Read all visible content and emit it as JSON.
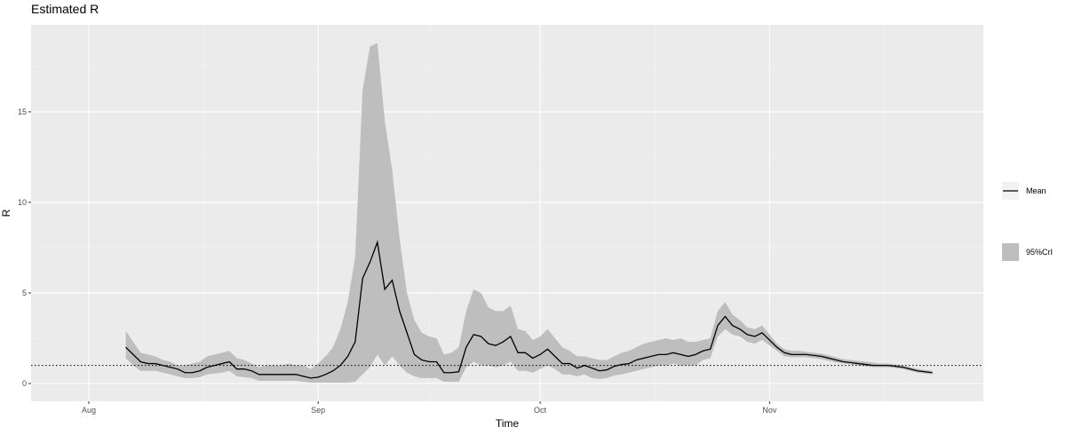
{
  "chart_data": {
    "type": "line",
    "title": "Estimated R",
    "x_label": "Time",
    "y_label": "R",
    "x": [
      5,
      6,
      7,
      8,
      9,
      10,
      11,
      12,
      13,
      14,
      15,
      16,
      17,
      18,
      19,
      20,
      21,
      22,
      23,
      24,
      25,
      26,
      27,
      28,
      29,
      30,
      31,
      32,
      33,
      34,
      35,
      36,
      37,
      38,
      39,
      40,
      41,
      42,
      43,
      44,
      45,
      46,
      47,
      48,
      49,
      50,
      51,
      52,
      53,
      54,
      55,
      56,
      57,
      58,
      59,
      60,
      61,
      62,
      63,
      64,
      65,
      66,
      67,
      68,
      69,
      70,
      71,
      72,
      73,
      74,
      75,
      76,
      77,
      78,
      79,
      80,
      81,
      82,
      83,
      84,
      85,
      86,
      87,
      88,
      89,
      90,
      91,
      92,
      93,
      94,
      95,
      96,
      97,
      98,
      99,
      100,
      101,
      102,
      103,
      104,
      105,
      106,
      107,
      108,
      109,
      110,
      111,
      112,
      113,
      114
    ],
    "series": [
      {
        "name": "Mean",
        "kind": "line",
        "color": "#000000",
        "values": [
          2.0,
          1.6,
          1.2,
          1.1,
          1.1,
          1.0,
          0.9,
          0.8,
          0.6,
          0.6,
          0.7,
          0.9,
          1.0,
          1.1,
          1.2,
          0.8,
          0.8,
          0.7,
          0.5,
          0.5,
          0.5,
          0.5,
          0.5,
          0.5,
          0.4,
          0.3,
          0.35,
          0.5,
          0.7,
          1.0,
          1.5,
          2.3,
          5.8,
          6.7,
          7.8,
          5.2,
          5.7,
          4.0,
          2.8,
          1.6,
          1.3,
          1.2,
          1.2,
          0.6,
          0.6,
          0.65,
          2.0,
          2.7,
          2.6,
          2.2,
          2.1,
          2.3,
          2.6,
          1.7,
          1.7,
          1.4,
          1.6,
          1.9,
          1.5,
          1.1,
          1.1,
          0.85,
          1.0,
          0.85,
          0.7,
          0.75,
          0.95,
          1.05,
          1.1,
          1.3,
          1.4,
          1.5,
          1.6,
          1.6,
          1.7,
          1.6,
          1.5,
          1.6,
          1.8,
          1.9,
          3.2,
          3.7,
          3.2,
          3.0,
          2.7,
          2.6,
          2.8,
          2.4,
          2.0,
          1.7,
          1.6,
          1.6,
          1.6,
          1.55,
          1.5,
          1.4,
          1.3,
          1.2,
          1.15,
          1.1,
          1.05,
          1.0,
          1.0,
          1.0,
          0.95,
          0.9,
          0.8,
          0.7,
          0.65,
          0.6
        ]
      },
      {
        "name": "95%CrI",
        "kind": "band",
        "color": "#bebebe",
        "upper": [
          2.9,
          2.3,
          1.7,
          1.6,
          1.5,
          1.3,
          1.2,
          1.0,
          1.0,
          1.1,
          1.2,
          1.5,
          1.6,
          1.7,
          1.8,
          1.4,
          1.3,
          1.1,
          0.9,
          1.0,
          1.0,
          1.0,
          1.1,
          1.0,
          1.0,
          0.8,
          1.1,
          1.5,
          2.0,
          3.0,
          4.5,
          7.0,
          16.2,
          18.6,
          18.8,
          14.5,
          11.8,
          8.0,
          5.0,
          3.5,
          2.8,
          2.6,
          2.5,
          1.6,
          1.7,
          2.0,
          4.0,
          5.2,
          5.0,
          4.2,
          4.0,
          4.0,
          4.3,
          3.0,
          2.9,
          2.4,
          2.6,
          3.0,
          2.5,
          2.0,
          1.8,
          1.5,
          1.5,
          1.4,
          1.3,
          1.3,
          1.5,
          1.7,
          1.8,
          2.0,
          2.2,
          2.3,
          2.4,
          2.5,
          2.4,
          2.5,
          2.3,
          2.3,
          2.4,
          2.5,
          4.0,
          4.5,
          3.8,
          3.5,
          3.1,
          3.0,
          3.2,
          2.7,
          2.2,
          1.9,
          1.8,
          1.8,
          1.75,
          1.7,
          1.65,
          1.55,
          1.45,
          1.35,
          1.3,
          1.25,
          1.2,
          1.15,
          1.1,
          1.1,
          1.05,
          1.0,
          0.9,
          0.8,
          0.75,
          0.7
        ],
        "lower": [
          1.4,
          1.0,
          0.7,
          0.7,
          0.7,
          0.6,
          0.5,
          0.4,
          0.3,
          0.3,
          0.35,
          0.5,
          0.55,
          0.6,
          0.7,
          0.4,
          0.35,
          0.3,
          0.15,
          0.15,
          0.15,
          0.15,
          0.15,
          0.15,
          0.1,
          0.05,
          0.05,
          0.05,
          0.05,
          0.05,
          0.05,
          0.1,
          0.5,
          0.9,
          1.6,
          1.0,
          1.5,
          1.0,
          0.6,
          0.4,
          0.3,
          0.3,
          0.3,
          0.1,
          0.1,
          0.1,
          0.9,
          1.2,
          1.0,
          1.0,
          0.9,
          1.0,
          1.2,
          0.7,
          0.7,
          0.6,
          0.8,
          1.0,
          0.8,
          0.5,
          0.5,
          0.4,
          0.5,
          0.3,
          0.25,
          0.3,
          0.45,
          0.5,
          0.6,
          0.7,
          0.8,
          0.9,
          1.0,
          1.0,
          1.1,
          1.0,
          1.0,
          1.0,
          1.3,
          1.4,
          2.6,
          3.0,
          2.7,
          2.6,
          2.3,
          2.2,
          2.4,
          2.1,
          1.8,
          1.5,
          1.45,
          1.45,
          1.45,
          1.4,
          1.35,
          1.25,
          1.15,
          1.1,
          1.05,
          1.0,
          0.95,
          0.9,
          0.9,
          0.9,
          0.85,
          0.8,
          0.7,
          0.6,
          0.55,
          0.5
        ]
      }
    ],
    "hline": 1,
    "xlim": [
      -7.8,
      120.9
    ],
    "xticks": [
      {
        "value": 0,
        "label": "Aug"
      },
      {
        "value": 31,
        "label": "Sep"
      },
      {
        "value": 61,
        "label": "Oct"
      },
      {
        "value": 92,
        "label": "Nov"
      }
    ],
    "x_minor_ticks": [
      15.5,
      46,
      76.5,
      107.5
    ],
    "ylim": [
      -0.98,
      19.8
    ],
    "yticks": [
      0,
      5,
      10,
      15
    ],
    "y_minor_ticks": [
      2.5,
      7.5,
      12.5,
      17.5
    ],
    "grid": true,
    "legend": "right"
  }
}
